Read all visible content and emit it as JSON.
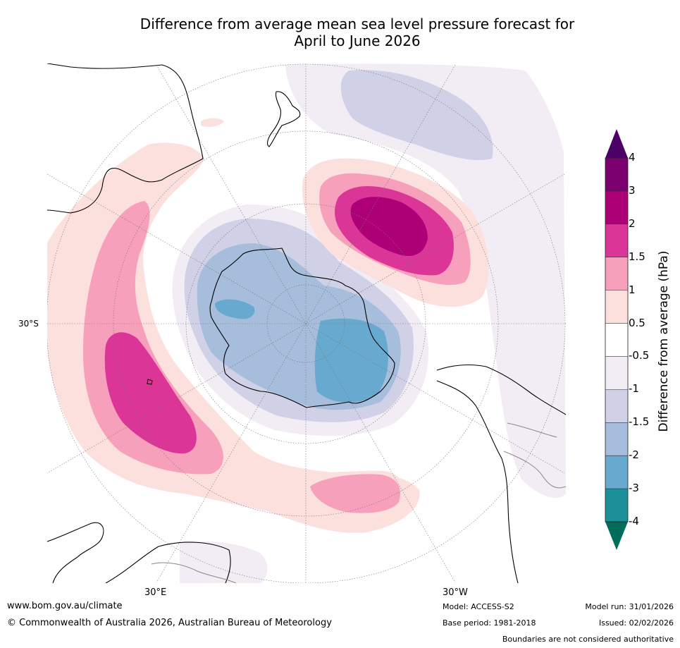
{
  "title_line1": "Difference from average mean sea level pressure forecast for",
  "title_line2": "April to June 2026",
  "colorbar": {
    "title": "Difference from average (hPa)",
    "tick_labels": [
      "4",
      "3",
      "2",
      "1.5",
      "1",
      "0.5",
      "-0.5",
      "-1",
      "-1.5",
      "-2",
      "-3",
      "-4"
    ],
    "colors": [
      "#4b0066",
      "#7c0070",
      "#ad0077",
      "#dc3598",
      "#f7a0bb",
      "#fce0de",
      "#ffffff",
      "#f2ecf4",
      "#d0d1e6",
      "#a6bddb",
      "#67a9cf",
      "#1c9099",
      "#016c59"
    ]
  },
  "map": {
    "lat_label": "30°S",
    "lon_label_east": "30°E",
    "lon_label_west": "30°W",
    "colors": {
      "pos_05": "#fce0de",
      "pos_1": "#f7a0bb",
      "pos_15": "#dc3598",
      "pos_2": "#ad0077",
      "neg_05": "#f2ecf4",
      "neg_1": "#d0d1e6",
      "neg_15": "#a6bddb",
      "neg_2": "#67a9cf"
    }
  },
  "footer": {
    "website": "www.bom.gov.au/climate",
    "copyright": "© Commonwealth of Australia 2026, Australian Bureau of Meteorology",
    "model": "Model: ACCESS-S2",
    "base_period": "Base period: 1981-2018",
    "model_run": "Model run: 31/01/2026",
    "issued": "Issued: 02/02/2026",
    "disclaimer": "Boundaries are not considered authoritative"
  }
}
